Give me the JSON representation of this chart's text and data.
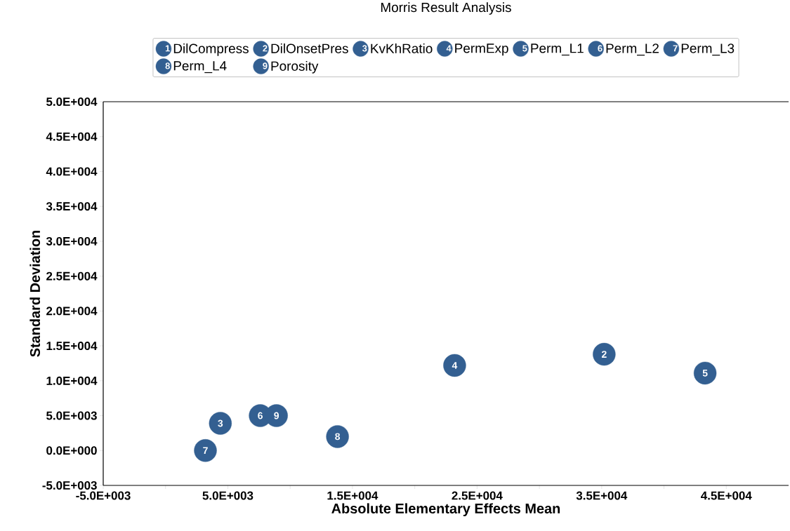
{
  "chart_data": {
    "type": "scatter",
    "title": "Morris Result Analysis",
    "xlabel": "Absolute Elementary Effects Mean",
    "ylabel": "Standard Deviation",
    "marker": "circle",
    "legend": "top",
    "annotations": [
      "1",
      "2",
      "3",
      "4",
      "5",
      "6",
      "7",
      "8",
      "9"
    ],
    "xlim": [
      -5000,
      50000
    ],
    "xticks": [
      {
        "value": -5000,
        "label": "-5.0E+003"
      },
      {
        "value": 0,
        "label": null
      },
      {
        "value": 5000,
        "label": "5.0E+003"
      },
      {
        "value": 10000,
        "label": null
      },
      {
        "value": 15000,
        "label": "1.5E+004"
      },
      {
        "value": 20000,
        "label": null
      },
      {
        "value": 25000,
        "label": "2.5E+004"
      },
      {
        "value": 30000,
        "label": null
      },
      {
        "value": 35000,
        "label": "3.5E+004"
      },
      {
        "value": 40000,
        "label": null
      },
      {
        "value": 45000,
        "label": "4.5E+004"
      }
    ],
    "ylim": [
      -5000,
      50000
    ],
    "yticks": [
      {
        "value": -5000,
        "label": "-5.0E+003"
      },
      {
        "value": 0,
        "label": "0.0E+000"
      },
      {
        "value": 5000,
        "label": "5.0E+003"
      },
      {
        "value": 10000,
        "label": "1.0E+004"
      },
      {
        "value": 15000,
        "label": "1.5E+004"
      },
      {
        "value": 20000,
        "label": "2.0E+004"
      },
      {
        "value": 25000,
        "label": "2.5E+004"
      },
      {
        "value": 30000,
        "label": "3.0E+004"
      },
      {
        "value": 35000,
        "label": "3.5E+004"
      },
      {
        "value": 40000,
        "label": "4.0E+004"
      },
      {
        "value": 45000,
        "label": "4.5E+004"
      },
      {
        "value": 50000,
        "label": "5.0E+004"
      }
    ],
    "series": [
      {
        "name": "DilCompress",
        "color": "#335f91",
        "x": [
          null
        ],
        "values": [
          null
        ]
      },
      {
        "name": "DilOnsetPres",
        "color": "#335f91",
        "x": [
          35200
        ],
        "values": [
          13800
        ]
      },
      {
        "name": "KvKhRatio",
        "color": "#335f91",
        "x": [
          4400
        ],
        "values": [
          3900
        ]
      },
      {
        "name": "PermExp",
        "color": "#335f91",
        "x": [
          23200
        ],
        "values": [
          12200
        ]
      },
      {
        "name": "Perm_L1",
        "color": "#335f91",
        "x": [
          43300
        ],
        "values": [
          11100
        ]
      },
      {
        "name": "Perm_L2",
        "color": "#335f91",
        "x": [
          7600
        ],
        "values": [
          5000
        ]
      },
      {
        "name": "Perm_L3",
        "color": "#335f91",
        "x": [
          3200
        ],
        "values": [
          0
        ]
      },
      {
        "name": "Perm_L4",
        "color": "#335f91",
        "x": [
          13800
        ],
        "values": [
          2000
        ]
      },
      {
        "name": "Porosity",
        "color": "#335f91",
        "x": [
          8900
        ],
        "values": [
          5000
        ]
      }
    ]
  }
}
